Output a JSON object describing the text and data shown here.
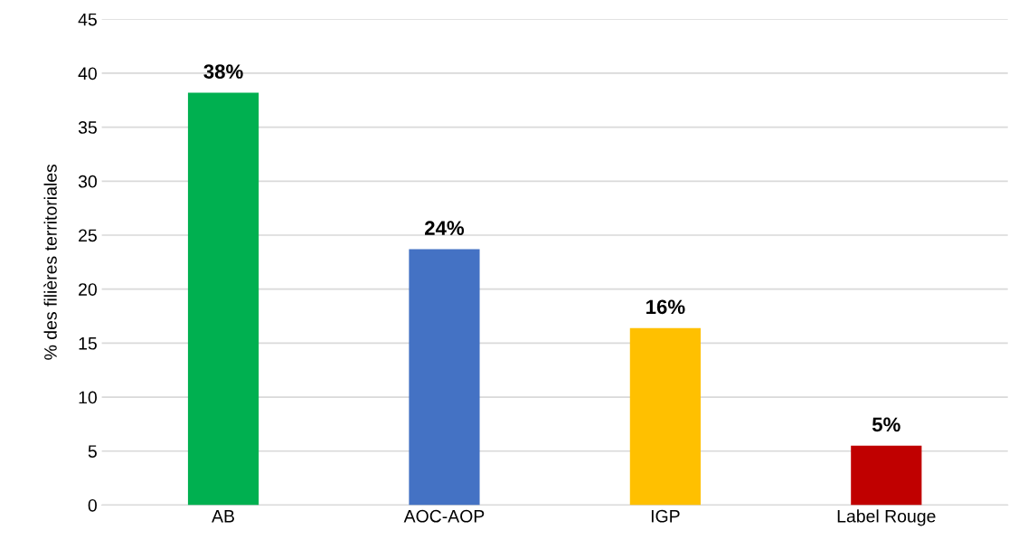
{
  "chart_data": {
    "type": "bar",
    "ylabel": "% des filières territoriales",
    "categories": [
      "AB",
      "AOC-AOP",
      "IGP",
      "Label Rouge"
    ],
    "values": [
      38.2,
      23.7,
      16.4,
      5.5
    ],
    "colors": [
      "#00b050",
      "#4472c4",
      "#ffc000",
      "#c00000"
    ],
    "value_labels": [
      "38%",
      "24%",
      "16%",
      "5%"
    ],
    "ylim": [
      0,
      45
    ],
    "yticks": [
      0,
      5,
      10,
      15,
      20,
      25,
      30,
      35,
      40,
      45
    ],
    "grid": "y",
    "legend": false
  }
}
